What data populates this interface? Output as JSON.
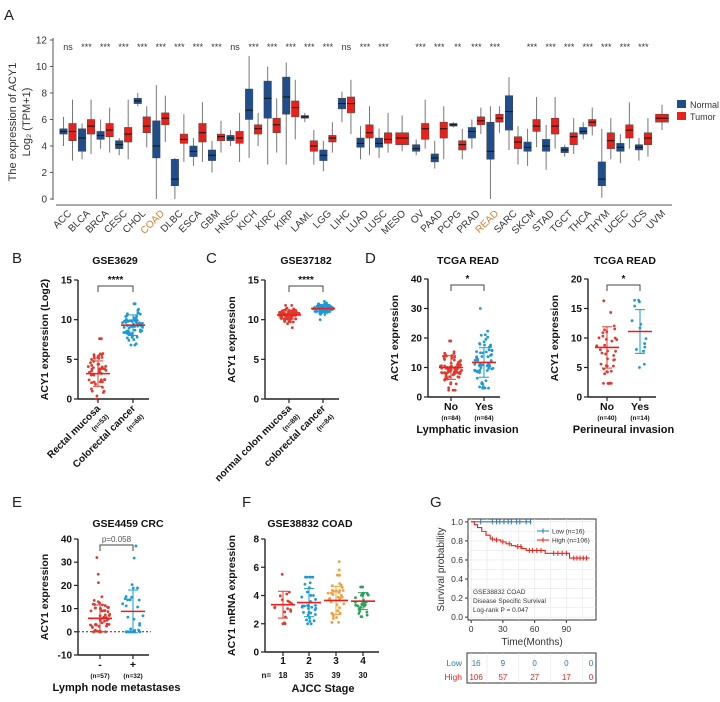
{
  "colors": {
    "normal": "#1f4e8c",
    "tumor": "#e8221b",
    "scatter_red": "#e03a2f",
    "scatter_blue": "#1a9ad6",
    "scatter_orange": "#f0a040",
    "scatter_green": "#2ca05a",
    "highlight": "#e07b2a",
    "km_low": "#2b7bb9",
    "km_high": "#e8221b"
  },
  "panel_labels": {
    "A": "A",
    "B": "B",
    "C": "C",
    "D": "D",
    "E": "E",
    "F": "F",
    "G": "G"
  },
  "chart_data": [
    {
      "id": "A",
      "type": "box",
      "ylabel_line1": "The expression of ACY1",
      "ylabel_line2": "Log₂ (TPM+1)",
      "ylim": [
        0,
        12
      ],
      "yticks": [
        0,
        2,
        4,
        6,
        8,
        10,
        12
      ],
      "legend": {
        "placement": "right",
        "entries": [
          "Normal",
          "Tumor"
        ]
      },
      "highlighted": [
        "COAD",
        "READ"
      ],
      "categories": [
        {
          "name": "ACC",
          "sig": "ns",
          "normal": [
            4,
            4.9,
            5.1,
            5.3,
            6.2
          ],
          "tumor": [
            2.9,
            4.4,
            5.1,
            5.7,
            7.5
          ]
        },
        {
          "name": "BLCA",
          "sig": "***",
          "normal": [
            3,
            3.6,
            4.6,
            5.3,
            5.7
          ],
          "tumor": [
            3.4,
            4.9,
            5.5,
            6,
            7.5
          ]
        },
        {
          "name": "BRCA",
          "sig": "***",
          "normal": [
            3.8,
            4.5,
            4.8,
            5.1,
            6
          ],
          "tumor": [
            3.5,
            4.7,
            5.2,
            5.7,
            6.9
          ]
        },
        {
          "name": "CESC",
          "sig": "***",
          "normal": [
            3.3,
            3.8,
            4.1,
            4.4,
            4.6
          ],
          "tumor": [
            3,
            4.3,
            4.9,
            5.4,
            7.5
          ]
        },
        {
          "name": "CHOL",
          "sig": "***",
          "normal": [
            7,
            7.2,
            7.4,
            7.6,
            8
          ],
          "tumor": [
            3.9,
            5,
            5.5,
            6.2,
            7
          ]
        },
        {
          "name": "COAD",
          "sig": "***",
          "normal": [
            0,
            3.1,
            4,
            5.9,
            8.6
          ],
          "tumor": [
            4.3,
            5.6,
            6.1,
            6.5,
            7.8
          ]
        },
        {
          "name": "DLBC",
          "sig": "***",
          "normal": [
            0,
            1,
            1.5,
            3,
            3.1
          ],
          "tumor": [
            2.8,
            4.2,
            4.5,
            4.9,
            6.4
          ]
        },
        {
          "name": "ESCA",
          "sig": "***",
          "normal": [
            2.5,
            3.2,
            3.6,
            4,
            4.6
          ],
          "tumor": [
            2.8,
            4.3,
            5,
            5.7,
            7.3
          ]
        },
        {
          "name": "GBM",
          "sig": "***",
          "normal": [
            2,
            2.9,
            3.3,
            3.7,
            4.4
          ],
          "tumor": [
            3.5,
            4.4,
            4.7,
            4.9,
            5.9
          ]
        },
        {
          "name": "HNSC",
          "sig": "ns",
          "normal": [
            4,
            4.4,
            4.6,
            4.8,
            5.2
          ],
          "tumor": [
            2.8,
            4.2,
            4.6,
            5.1,
            6.5
          ]
        },
        {
          "name": "KICH",
          "sig": "***",
          "normal": [
            3.1,
            6,
            6.7,
            8.3,
            10.8
          ],
          "tumor": [
            4,
            4.9,
            5.3,
            5.6,
            6.5
          ]
        },
        {
          "name": "KIRC",
          "sig": "***",
          "normal": [
            2.6,
            6.1,
            7.6,
            8.9,
            10
          ],
          "tumor": [
            3.5,
            5,
            5.6,
            6.1,
            7.6
          ]
        },
        {
          "name": "KIRP",
          "sig": "***",
          "normal": [
            2.6,
            6.4,
            7.7,
            9.2,
            10.3
          ],
          "tumor": [
            4.5,
            6.2,
            6.9,
            7.4,
            9
          ]
        },
        {
          "name": "LAML",
          "sig": "***",
          "normal": [
            5.8,
            6.1,
            6.2,
            6.3,
            6.5
          ],
          "tumor": [
            2.6,
            3.6,
            4,
            4.4,
            5.2
          ]
        },
        {
          "name": "LGG",
          "sig": "***",
          "normal": [
            2.1,
            2.9,
            3.3,
            3.7,
            4.4
          ],
          "tumor": [
            3.5,
            4.3,
            4.6,
            4.8,
            5.8
          ]
        },
        {
          "name": "LIHC",
          "sig": "ns",
          "normal": [
            5.8,
            6.8,
            7.2,
            7.6,
            8.1
          ],
          "tumor": [
            4.9,
            6.5,
            7.2,
            7.7,
            9
          ]
        },
        {
          "name": "LUAD",
          "sig": "***",
          "normal": [
            3,
            3.9,
            4.2,
            4.6,
            5.5
          ],
          "tumor": [
            3.3,
            4.6,
            5,
            5.6,
            7
          ]
        },
        {
          "name": "LUSC",
          "sig": "***",
          "normal": [
            3.1,
            3.9,
            4.2,
            4.6,
            5.3
          ],
          "tumor": [
            3.5,
            4.2,
            4.5,
            5,
            6.5
          ]
        },
        {
          "name": "MESO",
          "sig": "",
          "normal": null,
          "tumor": [
            3.6,
            4.1,
            4.6,
            5,
            6.3
          ]
        },
        {
          "name": "OV",
          "sig": "***",
          "normal": [
            3.3,
            3.6,
            3.8,
            4.1,
            4.5
          ],
          "tumor": [
            3.8,
            4.5,
            5.3,
            5.7,
            7.5
          ]
        },
        {
          "name": "PAAD",
          "sig": "***",
          "normal": [
            2.3,
            2.8,
            3.1,
            3.4,
            4.4
          ],
          "tumor": [
            3,
            4.6,
            5.3,
            5.8,
            7
          ]
        },
        {
          "name": "PCPG",
          "sig": "**",
          "normal": [
            5.4,
            5.5,
            5.6,
            5.7,
            5.8
          ],
          "tumor": [
            3,
            3.7,
            4.1,
            4.4,
            5.3
          ]
        },
        {
          "name": "PRAD",
          "sig": "***",
          "normal": [
            3.8,
            4.6,
            5.1,
            5.4,
            6
          ],
          "tumor": [
            4.9,
            5.6,
            5.9,
            6.2,
            6.9
          ]
        },
        {
          "name": "READ",
          "sig": "***",
          "normal": [
            0,
            3,
            3.6,
            5.8,
            7
          ],
          "tumor": [
            5,
            5.8,
            6.1,
            6.4,
            7
          ]
        },
        {
          "name": "SARC",
          "sig": "",
          "normal": [
            3.7,
            5.2,
            6.6,
            7.8,
            9.2
          ],
          "tumor": [
            2.6,
            3.8,
            4.3,
            4.7,
            5.5
          ]
        },
        {
          "name": "SKCM",
          "sig": "***",
          "normal": [
            2.5,
            3.6,
            3.9,
            4.3,
            5.3
          ],
          "tumor": [
            3.9,
            5.1,
            5.5,
            6,
            7.7
          ]
        },
        {
          "name": "STAD",
          "sig": "***",
          "normal": [
            2.2,
            3.6,
            4,
            4.5,
            5.6
          ],
          "tumor": [
            3.8,
            4.9,
            5.5,
            6.1,
            7.7
          ]
        },
        {
          "name": "TGCT",
          "sig": "***",
          "normal": [
            3.2,
            3.5,
            3.7,
            3.9,
            4.1
          ],
          "tumor": [
            3.4,
            4.1,
            4.7,
            5,
            6.1
          ]
        },
        {
          "name": "THCA",
          "sig": "***",
          "normal": [
            4.5,
            4.9,
            5.1,
            5.4,
            5.8
          ],
          "tumor": [
            4.8,
            5.5,
            5.8,
            6,
            6.9
          ]
        },
        {
          "name": "THYM",
          "sig": "***",
          "normal": [
            0.1,
            1,
            1.5,
            2.8,
            5.3
          ],
          "tumor": [
            3,
            3.8,
            4.4,
            5,
            6.1
          ]
        },
        {
          "name": "UCEC",
          "sig": "***",
          "normal": [
            2.7,
            3.6,
            3.9,
            4.2,
            4.9
          ],
          "tumor": [
            3.8,
            4.6,
            5.2,
            5.6,
            7.3
          ]
        },
        {
          "name": "UCS",
          "sig": "***",
          "normal": [
            2.9,
            3.7,
            3.9,
            4.1,
            4.6
          ],
          "tumor": [
            3.2,
            4.1,
            4.6,
            5,
            6.1
          ]
        },
        {
          "name": "UVM",
          "sig": "",
          "normal": null,
          "tumor": [
            5.2,
            5.8,
            6.1,
            6.4,
            7.1
          ]
        }
      ]
    },
    {
      "id": "B",
      "type": "scatter",
      "title": "GSE3629",
      "ylabel": "ACY1 expression (Log2)",
      "ylim": [
        0,
        15
      ],
      "yticks": [
        0,
        5,
        10,
        15
      ],
      "sig": "****",
      "xlabel": "",
      "rotate_labels": true,
      "groups": [
        {
          "label": "Rectal mucosa",
          "n": "(n=53)",
          "count": 53,
          "mean": 3.2,
          "sd": 1.6,
          "range": [
            0,
            7.6
          ],
          "color": "red"
        },
        {
          "label": "Colorectal cancer",
          "n": "(n=68)",
          "count": 68,
          "mean": 9.3,
          "sd": 1.3,
          "range": [
            6.8,
            12
          ],
          "color": "blue"
        }
      ]
    },
    {
      "id": "C",
      "type": "scatter",
      "title": "GSE37182",
      "ylabel": "ACY1 expression",
      "ylim": [
        0,
        15
      ],
      "yticks": [
        0,
        5,
        10,
        15
      ],
      "sig": "****",
      "xlabel": "",
      "rotate_labels": true,
      "groups": [
        {
          "label": "normal colon mucosa",
          "n": "(n=88)",
          "count": 88,
          "mean": 10.6,
          "sd": 0.5,
          "range": [
            9,
            11.8
          ],
          "color": "red"
        },
        {
          "label": "colorectal cancer",
          "n": "(n=84)",
          "count": 84,
          "mean": 11.4,
          "sd": 0.4,
          "range": [
            10,
            12.3
          ],
          "color": "blue"
        }
      ]
    },
    {
      "id": "D1",
      "type": "scatter",
      "title": "TCGA READ",
      "ylabel": "ACY1 expression",
      "ylim": [
        0,
        40
      ],
      "yticks": [
        0,
        10,
        20,
        30,
        40
      ],
      "sig": "*",
      "xlabel": "Lymphatic invasion",
      "rotate_labels": false,
      "groups": [
        {
          "label": "No",
          "n": "(n=84)",
          "count": 84,
          "mean": 10,
          "sd": 4,
          "range": [
            2.3,
            19
          ],
          "color": "red"
        },
        {
          "label": "Yes",
          "n": "(n=64)",
          "count": 64,
          "mean": 11.7,
          "sd": 5,
          "range": [
            3,
            30
          ],
          "color": "blue"
        }
      ]
    },
    {
      "id": "D2",
      "type": "scatter",
      "title": "TCGA READ",
      "ylabel": "ACY1 expression",
      "ylim": [
        0,
        20
      ],
      "yticks": [
        0,
        5,
        10,
        15,
        20
      ],
      "sig": "*",
      "xlabel": "Perineural invasion",
      "rotate_labels": false,
      "groups": [
        {
          "label": "No",
          "n": "(n=40)",
          "count": 40,
          "mean": 8.4,
          "sd": 3.5,
          "range": [
            2.3,
            16.3
          ],
          "color": "red"
        },
        {
          "label": "Yes",
          "n": "(n=14)",
          "count": 14,
          "mean": 11.1,
          "sd": 3.7,
          "range": [
            5,
            16.4
          ],
          "color": "blue"
        }
      ]
    },
    {
      "id": "E",
      "type": "scatter",
      "title": "GSE4459 CRC",
      "ylabel": "ACY1 expression",
      "ylim": [
        -10,
        40
      ],
      "yticks": [
        -10,
        0,
        10,
        20,
        30,
        40
      ],
      "sig": "p=0.058",
      "xlabel": "Lymph node metastases",
      "rotate_labels": false,
      "zero_line": true,
      "groups": [
        {
          "label": "-",
          "n": "(n=57)",
          "count": 57,
          "mean": 5.8,
          "sd": 5.8,
          "range": [
            0,
            32
          ],
          "color": "red"
        },
        {
          "label": "+",
          "n": "(n=32)",
          "count": 32,
          "mean": 8.8,
          "sd": 9.2,
          "range": [
            0,
            37
          ],
          "color": "blue"
        }
      ]
    },
    {
      "id": "F",
      "type": "scatter",
      "title": "GSE38832 COAD",
      "ylabel": "ACY1 mRNA expression",
      "ylim": [
        0,
        8
      ],
      "yticks": [
        0,
        2,
        4,
        6,
        8
      ],
      "sig": "",
      "xlabel": "AJCC Stage",
      "rotate_labels": false,
      "n_prefix": "n=",
      "groups": [
        {
          "label": "1",
          "n": "18",
          "count": 18,
          "mean": 3.35,
          "sd": 0.95,
          "range": [
            2,
            5.5
          ],
          "color": "red"
        },
        {
          "label": "2",
          "n": "35",
          "count": 35,
          "mean": 3.5,
          "sd": 1,
          "range": [
            2,
            5.3
          ],
          "color": "blue"
        },
        {
          "label": "3",
          "n": "39",
          "count": 39,
          "mean": 3.65,
          "sd": 1,
          "range": [
            2.1,
            6.4
          ],
          "color": "orange"
        },
        {
          "label": "4",
          "n": "30",
          "count": 30,
          "mean": 3.6,
          "sd": 0.6,
          "range": [
            2.5,
            4.6
          ],
          "color": "green"
        }
      ]
    },
    {
      "id": "G",
      "type": "line",
      "subtype": "kaplan-meier",
      "ylabel": "Survival probability",
      "xlabel": "Time(Months)",
      "xticks": [
        0,
        30,
        60,
        90
      ],
      "yticks": [
        0,
        0.2,
        0.4,
        0.6,
        0.8,
        1.0
      ],
      "xlim": [
        0,
        115
      ],
      "ylim": [
        0,
        1
      ],
      "annotation": [
        "GSE38832 COAD",
        "Disease Specific Survival",
        "Log-rank P = 0.047"
      ],
      "series": [
        {
          "name": "Low (n=16)",
          "key": "low",
          "steps": [
            [
              0,
              1
            ],
            [
              57,
              1
            ]
          ],
          "censored": [
            9,
            20,
            24,
            27,
            31,
            35,
            38,
            43,
            46,
            52,
            56
          ]
        },
        {
          "name": "High (n=106)",
          "key": "high",
          "steps": [
            [
              0,
              1
            ],
            [
              3,
              0.97
            ],
            [
              6,
              0.94
            ],
            [
              10,
              0.9
            ],
            [
              14,
              0.86
            ],
            [
              18,
              0.82
            ],
            [
              22,
              0.81
            ],
            [
              28,
              0.79
            ],
            [
              33,
              0.77
            ],
            [
              38,
              0.75
            ],
            [
              42,
              0.74
            ],
            [
              48,
              0.72
            ],
            [
              52,
              0.7
            ],
            [
              70,
              0.67
            ],
            [
              93,
              0.62
            ],
            [
              112,
              0.62
            ]
          ],
          "censored": [
            20,
            24,
            30,
            36,
            44,
            47,
            55,
            58,
            62,
            66,
            78,
            82,
            86,
            90,
            97,
            100,
            103,
            106,
            109
          ]
        }
      ],
      "risk_table": {
        "rows": [
          {
            "label": "Low",
            "key": "low",
            "values": [
              "16",
              "9",
              "0",
              "0",
              "0"
            ]
          },
          {
            "label": "High",
            "key": "high",
            "values": [
              "106",
              "57",
              "27",
              "17",
              "0"
            ]
          }
        ]
      }
    }
  ]
}
